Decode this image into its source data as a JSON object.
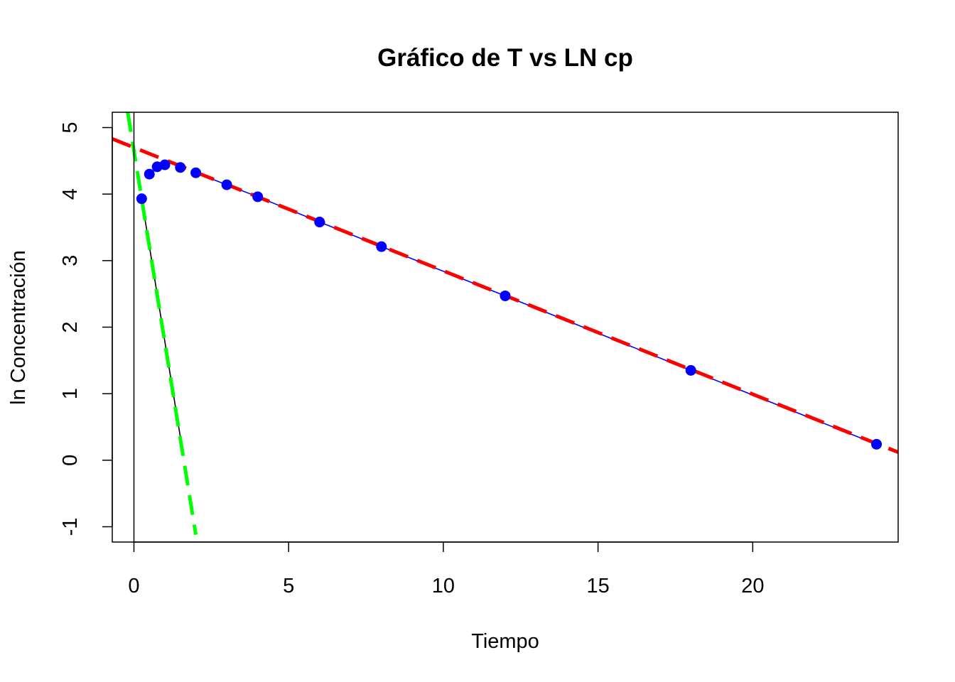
{
  "chart_data": {
    "type": "scatter",
    "title": "Gráfico de T vs LN cp",
    "xlabel": "Tiempo",
    "ylabel": "ln Concentración",
    "xlim": [
      -0.7,
      24.7
    ],
    "ylim": [
      -1.23,
      5.23
    ],
    "x_ticks": [
      0,
      5,
      10,
      15,
      20
    ],
    "y_ticks": [
      -1,
      0,
      1,
      2,
      3,
      4,
      5
    ],
    "grid": false,
    "legend": "none",
    "series": [
      {
        "type": "scatter",
        "color": "#0000ff",
        "points": [
          {
            "x": 0.25,
            "y": 3.93
          },
          {
            "x": 0.5,
            "y": 4.3
          },
          {
            "x": 0.75,
            "y": 4.41
          },
          {
            "x": 1.0,
            "y": 4.44
          },
          {
            "x": 1.5,
            "y": 4.4
          },
          {
            "x": 2.0,
            "y": 4.32
          },
          {
            "x": 3.0,
            "y": 4.14
          },
          {
            "x": 4.0,
            "y": 3.96
          },
          {
            "x": 6.0,
            "y": 3.58
          },
          {
            "x": 8.0,
            "y": 3.21
          },
          {
            "x": 12.0,
            "y": 2.47
          },
          {
            "x": 18.0,
            "y": 1.35
          },
          {
            "x": 24.0,
            "y": 0.24
          }
        ]
      },
      {
        "type": "line",
        "style": "solid",
        "color": "#0000ff",
        "points": [
          {
            "x": 2.0,
            "y": 4.32
          },
          {
            "x": 3.0,
            "y": 4.14
          },
          {
            "x": 4.0,
            "y": 3.96
          },
          {
            "x": 6.0,
            "y": 3.58
          },
          {
            "x": 8.0,
            "y": 3.21
          },
          {
            "x": 12.0,
            "y": 2.47
          },
          {
            "x": 18.0,
            "y": 1.35
          },
          {
            "x": 24.0,
            "y": 0.24
          }
        ]
      },
      {
        "type": "line",
        "style": "solid",
        "color": "#000000",
        "points": [
          {
            "x": 0.25,
            "y": 3.93
          },
          {
            "x": 1.5,
            "y": 0.35
          }
        ]
      },
      {
        "type": "line",
        "style": "dashed",
        "color": "#ff0000",
        "points": [
          {
            "x": -0.7,
            "y": 4.83
          },
          {
            "x": 24.7,
            "y": 0.12
          }
        ]
      },
      {
        "type": "line",
        "style": "dashed",
        "color": "#00ff00",
        "points": [
          {
            "x": -0.2,
            "y": 5.23
          },
          {
            "x": 2.0,
            "y": -1.12
          }
        ]
      },
      {
        "type": "vline",
        "style": "solid",
        "color": "#000000",
        "x": 0
      }
    ]
  }
}
